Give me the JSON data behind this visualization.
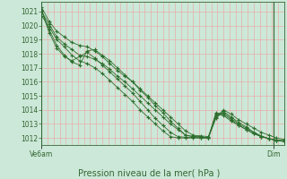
{
  "background_color": "#cce8d8",
  "plot_bg_color": "#cce8d8",
  "grid_color_major": "#f0a0a0",
  "grid_color_minor": "#f0a0a0",
  "line_color": "#2d6e2d",
  "marker_color": "#2d6e2d",
  "title": "Pression niveau de la mer( hPa )",
  "xlabel_left": "Ve6am",
  "xlabel_right": "Dim",
  "ylim": [
    1011.5,
    1021.7
  ],
  "yticks": [
    1012,
    1013,
    1014,
    1015,
    1016,
    1017,
    1018,
    1019,
    1020,
    1021
  ],
  "n_xgrid": 40,
  "series": [
    [
      1021.3,
      1020.3,
      1019.6,
      1019.2,
      1018.8,
      1018.6,
      1018.5,
      1018.2,
      1017.8,
      1017.3,
      1016.8,
      1016.4,
      1016.0,
      1015.5,
      1015.0,
      1014.5,
      1014.0,
      1013.5,
      1013.0,
      1012.5,
      1012.2,
      1012.15,
      1012.1,
      1013.5,
      1014.0,
      1013.7,
      1013.3,
      1013.0,
      1012.7,
      1012.4,
      1012.2,
      1012.0,
      1011.9
    ],
    [
      1021.0,
      1020.1,
      1019.2,
      1018.7,
      1018.3,
      1017.9,
      1017.8,
      1017.6,
      1017.3,
      1016.9,
      1016.4,
      1016.0,
      1015.5,
      1015.0,
      1014.5,
      1014.0,
      1013.5,
      1013.0,
      1012.6,
      1012.2,
      1012.1,
      1012.1,
      1012.0,
      1013.6,
      1013.8,
      1013.4,
      1013.0,
      1012.7,
      1012.4,
      1012.1,
      1011.95,
      1011.85,
      1011.8
    ],
    [
      1021.1,
      1019.7,
      1018.6,
      1017.9,
      1017.4,
      1017.2,
      1018.2,
      1018.3,
      1017.9,
      1017.5,
      1017.0,
      1016.5,
      1016.0,
      1015.4,
      1014.9,
      1014.3,
      1013.8,
      1013.2,
      1012.7,
      1012.2,
      1012.1,
      1012.05,
      1012.0,
      1013.7,
      1013.6,
      1013.2,
      1012.9,
      1012.6,
      1012.3,
      1012.1,
      1011.95,
      1011.85,
      1011.8
    ],
    [
      1021.05,
      1019.5,
      1018.4,
      1017.8,
      1017.5,
      1017.8,
      1018.1,
      1017.7,
      1017.2,
      1016.7,
      1016.2,
      1015.7,
      1015.2,
      1014.6,
      1014.0,
      1013.4,
      1012.9,
      1012.4,
      1012.1,
      1012.05,
      1012.05,
      1012.0,
      1012.0,
      1013.8,
      1013.7,
      1013.3,
      1012.9,
      1012.6,
      1012.3,
      1012.1,
      1011.95,
      1011.85,
      1011.8
    ],
    [
      1020.7,
      1019.9,
      1019.0,
      1018.5,
      1017.9,
      1017.5,
      1017.3,
      1017.0,
      1016.6,
      1016.1,
      1015.6,
      1015.1,
      1014.6,
      1014.0,
      1013.5,
      1013.0,
      1012.5,
      1012.1,
      1012.0,
      1012.0,
      1012.0,
      1012.0,
      1012.0,
      1013.4,
      1013.9,
      1013.5,
      1013.1,
      1012.8,
      1012.4,
      1012.15,
      1011.95,
      1011.8,
      1011.75
    ]
  ]
}
